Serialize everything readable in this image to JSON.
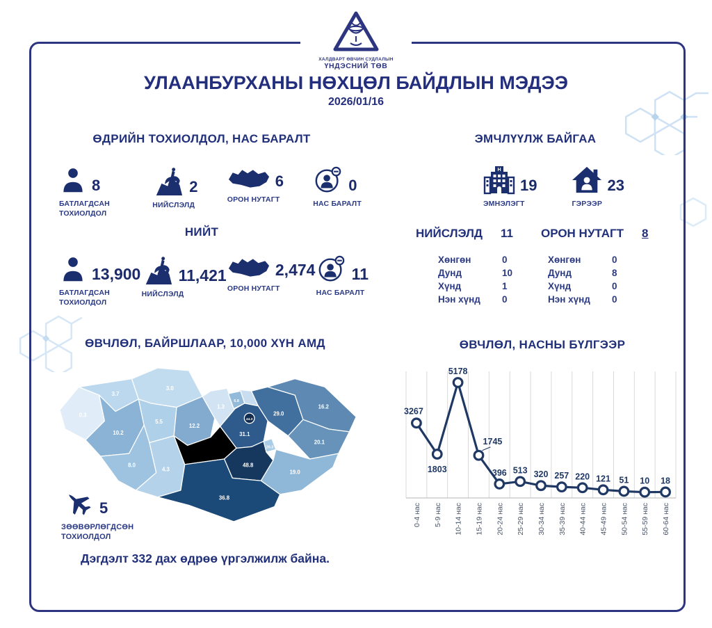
{
  "logo": {
    "org_line1": "ХАЛДВАРТ ӨВЧИН СУДЛАЛЫН",
    "org_line2": "ҮНДЭСНИЙ ТӨВ"
  },
  "header": {
    "title": "УЛААНБУРХАНЫ НӨХЦӨЛ БАЙДЛЫН МЭДЭЭ",
    "date": "2026/01/16"
  },
  "daily": {
    "title": "ӨДРИЙН ТОХИОЛДОЛ, НАС БАРАЛТ",
    "stats": [
      {
        "icon": "person-icon",
        "value": "8",
        "label": "БАТЛАГДСАН ТОХИОЛДОЛ"
      },
      {
        "icon": "horseman-statue-icon",
        "value": "2",
        "label": "НИЙСЛЭЛД"
      },
      {
        "icon": "mongolia-map-icon",
        "value": "6",
        "label": "ОРОН НУТАГТ"
      },
      {
        "icon": "deceased-person-icon",
        "value": "0",
        "label": "НАС БАРАЛТ"
      }
    ]
  },
  "total": {
    "title": "НИЙТ",
    "stats": [
      {
        "icon": "person-icon",
        "value": "13,900",
        "label": "БАТЛАГДСАН ТОХИОЛДОЛ"
      },
      {
        "icon": "horseman-statue-icon",
        "value": "11,421",
        "label": "НИЙСЛЭЛД"
      },
      {
        "icon": "mongolia-map-icon",
        "value": "2,474",
        "label": "ОРОН НУТАГТ"
      },
      {
        "icon": "deceased-person-icon",
        "value": "11",
        "label": "НАС БАРАЛТ"
      }
    ]
  },
  "treatment": {
    "title": "ЭМЧЛҮҮЛЖ БАЙГАА",
    "stats": [
      {
        "icon": "hospital-icon",
        "value": "19",
        "label": "ЭМНЭЛЭГТ"
      },
      {
        "icon": "home-icon",
        "value": "23",
        "label": "ГЭРЭЭР"
      }
    ],
    "capital": {
      "label": "НИЙСЛЭЛД",
      "value": "11",
      "severity": [
        [
          "Хөнгөн",
          "0"
        ],
        [
          "Дунд",
          "10"
        ],
        [
          "Хүнд",
          "1"
        ],
        [
          "Нэн хүнд",
          "0"
        ]
      ]
    },
    "regional": {
      "label": "ОРОН НУТАГТ",
      "value": "8",
      "severity": [
        [
          "Хөнгөн",
          "0"
        ],
        [
          "Дунд",
          "8"
        ],
        [
          "Хүнд",
          "0"
        ],
        [
          "Нэн хүнд",
          "0"
        ]
      ]
    }
  },
  "map_section": {
    "title": "ӨВЧЛӨЛ, БАЙРШЛААР, 10,000 ХҮН АМД",
    "regions": {
      "bayan_olgii": {
        "value": "0.3",
        "color": "#e0edf8"
      },
      "uvs": {
        "value": "3.7",
        "color": "#bcd8ee"
      },
      "khovsgol": {
        "value": "3.0",
        "color": "#c2dcef"
      },
      "khovd": {
        "value": "10.2",
        "color": "#8bb3d6"
      },
      "zavkhan": {
        "value": "5.5",
        "color": "#aed0e9"
      },
      "govi_altai": {
        "value": "8.0",
        "color": "#9dc3e1"
      },
      "bayankhongor": {
        "value": "4.3",
        "color": "#b4d3eb"
      },
      "arkhangai": {
        "value": "12.2",
        "color": "#83abd0"
      },
      "bulgan": {
        "value": "1.3",
        "color": "#d2e4f3"
      },
      "darkhan_uul": {
        "value": "6.8",
        "color": "#93bad9"
      },
      "selenge": {
        "value": "",
        "color": "#c8def0"
      },
      "tov": {
        "value": "31.1",
        "color": "#2e5a8c"
      },
      "ulaanbaatar": {
        "value": "44.3",
        "color": "#132b4d"
      },
      "khentii": {
        "value": "29.0",
        "color": "#416f9e"
      },
      "dornod": {
        "value": "16.2",
        "color": "#5d89b2"
      },
      "sukhbaatar": {
        "value": "20.1",
        "color": "#6793ba"
      },
      "govisumber": {
        "value": "20.3",
        "color": "#a9cde6"
      },
      "dundgovi": {
        "value": "48.8",
        "color": "#16385f"
      },
      "dornogovi": {
        "value": "19.0",
        "color": "#8fb7d8"
      },
      "omnogovi": {
        "value": "36.8",
        "color": "#1c4a78"
      }
    },
    "imported": {
      "icon": "airplane-icon",
      "value": "5",
      "label": "ЗӨӨВӨРЛӨГДСӨН ТОХИОЛДОЛ"
    }
  },
  "outbreak_note": "Дэгдэлт 332 дах өдрөө үргэлжилж байна.",
  "chart_data": {
    "type": "line",
    "title": "ӨВЧЛӨЛ, НАСНЫ БҮЛГЭЭР",
    "categories": [
      "0-4 нас",
      "5-9 нас",
      "10-14 нас",
      "15-19 нас",
      "20-24 нас",
      "25-29 нас",
      "30-34 нас",
      "35-39 нас",
      "40-44 нас",
      "45-49 нас",
      "50-54 нас",
      "55-59 нас",
      "60-64 нас"
    ],
    "values": [
      3267,
      1803,
      5178,
      1745,
      396,
      513,
      320,
      257,
      220,
      121,
      51,
      10,
      18
    ],
    "xlabel": "",
    "ylabel": "",
    "ylim": [
      0,
      5500
    ],
    "grid": "vertical-only",
    "legend": "none",
    "line_color": "#1f3864",
    "marker": "open-circle",
    "label_offsets": {
      "default": [
        0,
        -12
      ],
      "0": [
        -4,
        -13
      ],
      "1": [
        0,
        26
      ],
      "3": [
        20,
        -16
      ]
    },
    "leader_line_index": 3
  },
  "colors": {
    "primary_navy": "#21307a",
    "border_navy": "#2d3580",
    "number_navy": "#1b2a6b",
    "chart_line": "#1f3864",
    "gridline": "#d9d9d9",
    "axis_label_gray": "#4a5568",
    "hexagon_accent": "#cfe2f5"
  }
}
